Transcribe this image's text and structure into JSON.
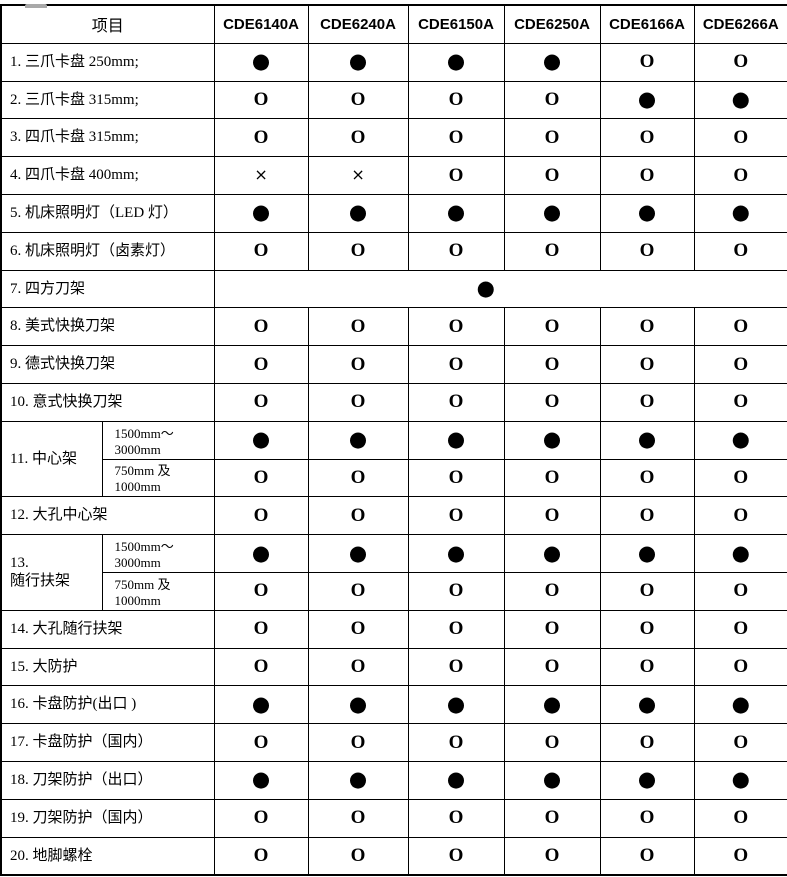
{
  "page": {
    "background_color": "#ffffff",
    "grid_color": "#000000",
    "text_color": "#000000"
  },
  "symbols": {
    "filled_glyph": "●",
    "open_glyph": "O",
    "cross_glyph": "×",
    "filled_name": "filled-circle-icon",
    "open_name": "open-circle-icon",
    "cross_name": "cross-icon"
  },
  "table": {
    "header": {
      "item_label": "项目",
      "models": [
        "CDE6140A",
        "CDE6240A",
        "CDE6150A",
        "CDE6250A",
        "CDE6166A",
        "CDE6266A"
      ]
    },
    "rows": [
      {
        "label": "1. 三爪卡盘 250mm;",
        "values": [
          "filled",
          "filled",
          "filled",
          "filled",
          "open",
          "open"
        ]
      },
      {
        "label": "2. 三爪卡盘 315mm;",
        "values": [
          "open",
          "open",
          "open",
          "open",
          "filled",
          "filled"
        ]
      },
      {
        "label": "3. 四爪卡盘 315mm;",
        "values": [
          "open",
          "open",
          "open",
          "open",
          "open",
          "open"
        ]
      },
      {
        "label": "4. 四爪卡盘 400mm;",
        "values": [
          "cross",
          "cross",
          "open",
          "open",
          "open",
          "open"
        ]
      },
      {
        "label": "5. 机床照明灯（LED 灯）",
        "values": [
          "filled",
          "filled",
          "filled",
          "filled",
          "filled",
          "filled"
        ]
      },
      {
        "label": "6. 机床照明灯（卤素灯）",
        "values": [
          "open",
          "open",
          "open",
          "open",
          "open",
          "open"
        ]
      },
      {
        "label": "7. 四方刀架",
        "merged": true,
        "merged_value": "filled"
      },
      {
        "label": "8. 美式快换刀架",
        "values": [
          "open",
          "open",
          "open",
          "open",
          "open",
          "open"
        ]
      },
      {
        "label": "9. 德式快换刀架",
        "values": [
          "open",
          "open",
          "open",
          "open",
          "open",
          "open"
        ]
      },
      {
        "label": "10. 意式快换刀架",
        "values": [
          "open",
          "open",
          "open",
          "open",
          "open",
          "open"
        ]
      },
      {
        "label": "11. 中心架",
        "subrows": [
          {
            "sublabel": "1500mm～3000mm",
            "values": [
              "filled",
              "filled",
              "filled",
              "filled",
              "filled",
              "filled"
            ]
          },
          {
            "sublabel": "750mm 及 1000mm",
            "values": [
              "open",
              "open",
              "open",
              "open",
              "open",
              "open"
            ]
          }
        ]
      },
      {
        "label": "12. 大孔中心架",
        "values": [
          "open",
          "open",
          "open",
          "open",
          "open",
          "open"
        ]
      },
      {
        "label": "13.\n随行扶架",
        "subrows": [
          {
            "sublabel": "1500mm～3000mm",
            "values": [
              "filled",
              "filled",
              "filled",
              "filled",
              "filled",
              "filled"
            ]
          },
          {
            "sublabel": "750mm 及 1000mm",
            "values": [
              "open",
              "open",
              "open",
              "open",
              "open",
              "open"
            ]
          }
        ]
      },
      {
        "label": "14. 大孔随行扶架",
        "values": [
          "open",
          "open",
          "open",
          "open",
          "open",
          "open"
        ]
      },
      {
        "label": "15. 大防护",
        "values": [
          "open",
          "open",
          "open",
          "open",
          "open",
          "open"
        ]
      },
      {
        "label": "16. 卡盘防护(出口 )",
        "values": [
          "filled",
          "filled",
          "filled",
          "filled",
          "filled",
          "filled"
        ]
      },
      {
        "label": "17. 卡盘防护（国内）",
        "values": [
          "open",
          "open",
          "open",
          "open",
          "open",
          "open"
        ]
      },
      {
        "label": "18. 刀架防护（出口）",
        "values": [
          "filled",
          "filled",
          "filled",
          "filled",
          "filled",
          "filled"
        ]
      },
      {
        "label": "19. 刀架防护（国内）",
        "values": [
          "open",
          "open",
          "open",
          "open",
          "open",
          "open"
        ]
      },
      {
        "label": "20. 地脚螺栓",
        "values": [
          "open",
          "open",
          "open",
          "open",
          "open",
          "open"
        ]
      }
    ]
  }
}
